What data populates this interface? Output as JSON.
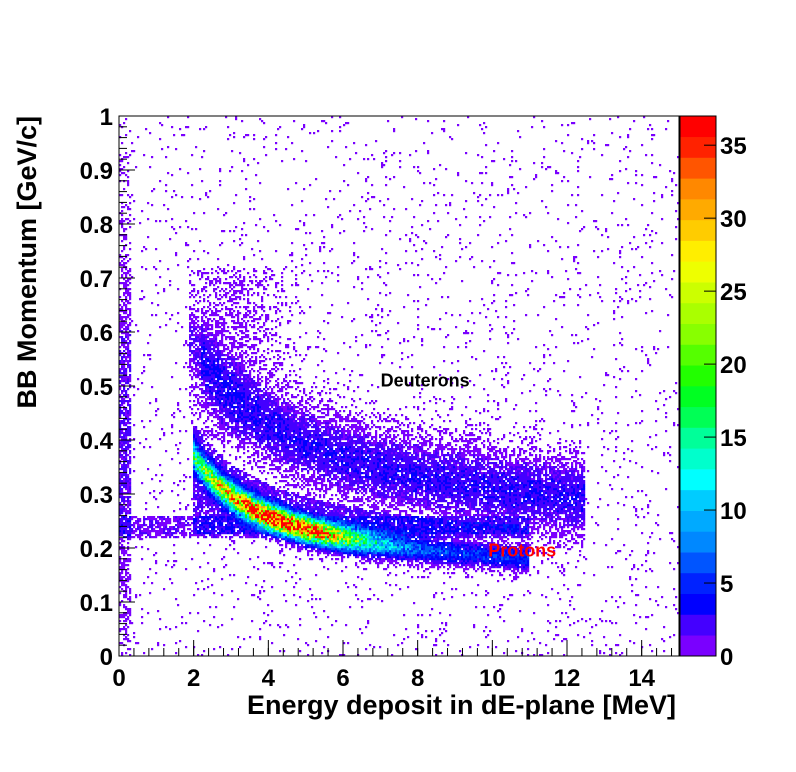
{
  "chart_data": {
    "type": "heatmap",
    "xlabel": "Energy deposit in dE-plane [MeV]",
    "ylabel": "BB Momentum [GeV/c]",
    "xlim": [
      0,
      15
    ],
    "ylim": [
      0,
      1
    ],
    "x_ticks": [
      "0",
      "2",
      "4",
      "6",
      "8",
      "10",
      "12",
      "14"
    ],
    "y_ticks": [
      "0",
      "0.1",
      "0.2",
      "0.3",
      "0.4",
      "0.5",
      "0.6",
      "0.7",
      "0.8",
      "0.9",
      "1"
    ],
    "colorbar": {
      "range": [
        0,
        37
      ],
      "ticks": [
        "0",
        "5",
        "10",
        "15",
        "20",
        "25",
        "30",
        "35"
      ],
      "colors": [
        "#7a00ff",
        "#4400ff",
        "#0000ff",
        "#0022ff",
        "#0055ff",
        "#0088ff",
        "#00aaff",
        "#00ccff",
        "#00ffff",
        "#00ffcc",
        "#00ff99",
        "#00ff55",
        "#00ff22",
        "#22ff00",
        "#55ff00",
        "#88ff00",
        "#aaff00",
        "#ccff00",
        "#eeff00",
        "#ffee00",
        "#ffcc00",
        "#ffaa00",
        "#ff8800",
        "#ff5500",
        "#ff2200",
        "#ff0000"
      ]
    },
    "annotations": [
      {
        "text": "Deuterons",
        "x": 8.2,
        "y": 0.51,
        "color": "#000000"
      },
      {
        "text": "Protons",
        "x": 10.8,
        "y": 0.195,
        "color": "#ff0000"
      }
    ],
    "grid": false,
    "legend": "none"
  }
}
